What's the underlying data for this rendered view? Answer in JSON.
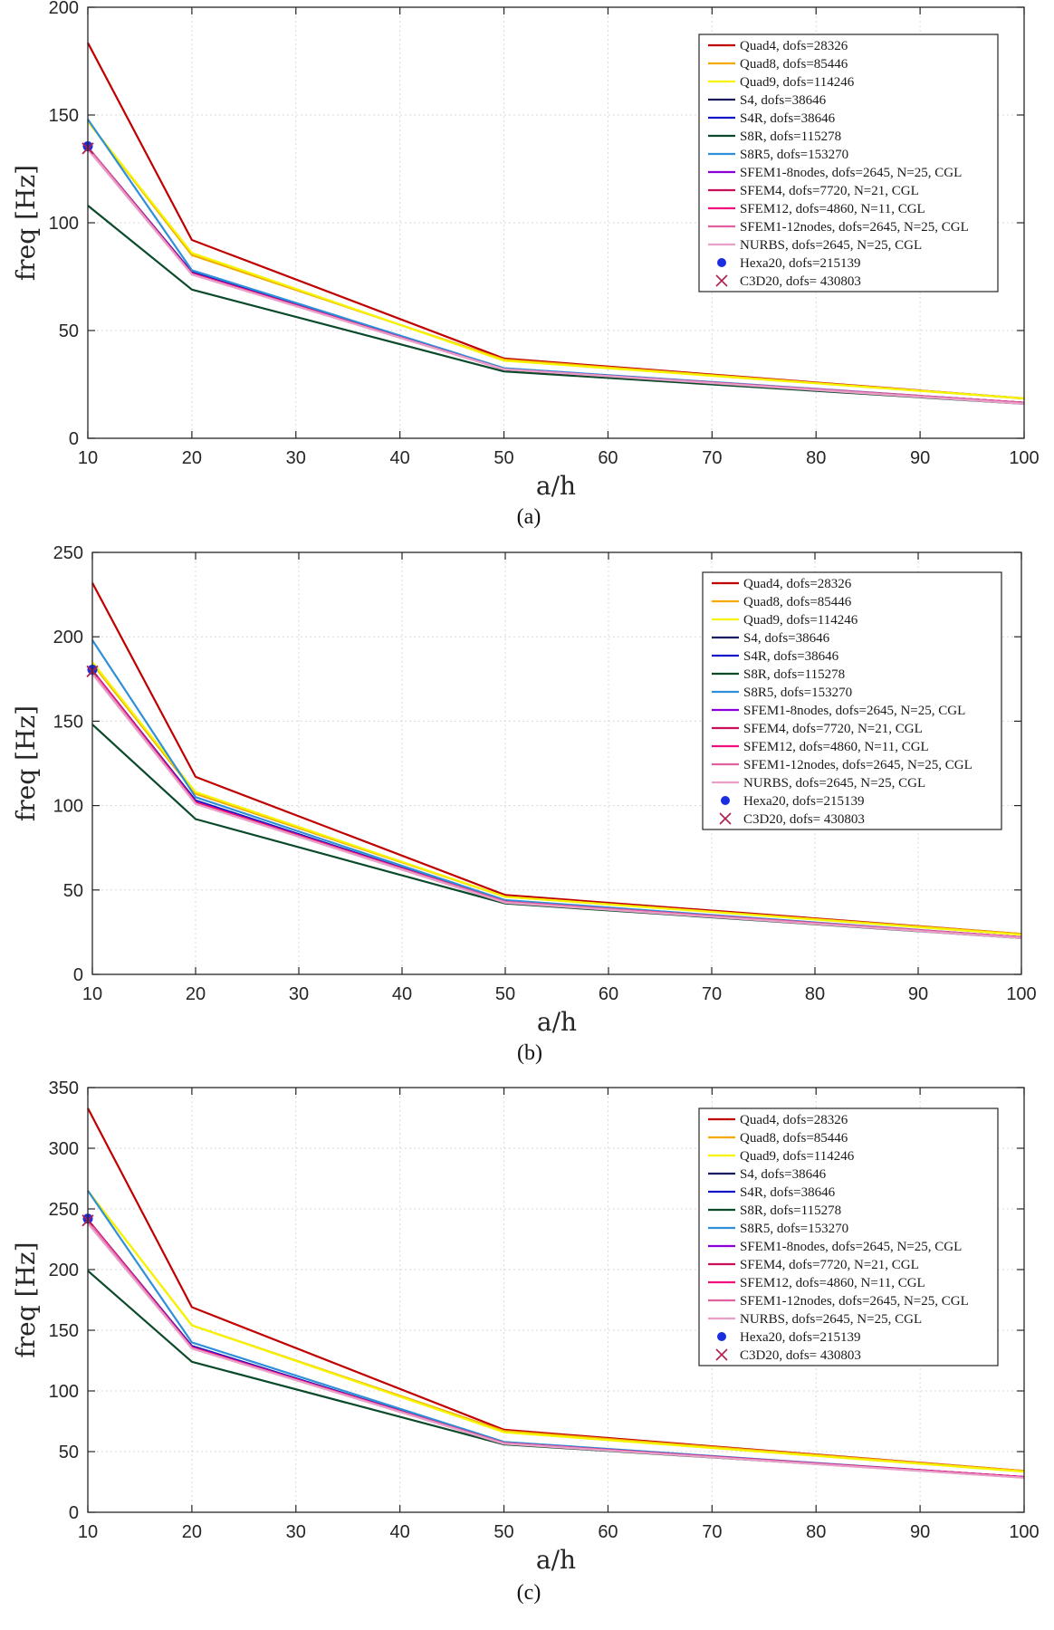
{
  "chart_data": [
    {
      "type": "line",
      "caption": "(a)",
      "xlabel": "a/h",
      "ylabel": "freq [Hz]",
      "xlim": [
        10,
        100
      ],
      "ylim": [
        0,
        200
      ],
      "xticks": [
        10,
        20,
        30,
        40,
        50,
        60,
        70,
        80,
        90,
        100
      ],
      "yticks": [
        0,
        50,
        100,
        150,
        200
      ],
      "x": [
        10,
        20,
        50,
        100
      ],
      "series": [
        {
          "name": "Quad4, dofs=28326",
          "color": "#c00000",
          "values": [
            183.5,
            92,
            37,
            18.5
          ]
        },
        {
          "name": "Quad8, dofs=85446",
          "color": "#f2a900",
          "values": [
            147,
            85,
            36.5,
            18.5
          ]
        },
        {
          "name": "Quad9, dofs=114246",
          "color": "#f5f500",
          "values": [
            147,
            86,
            36,
            18.5
          ]
        },
        {
          "name": "S4, dofs=38646",
          "color": "#1a1a5e",
          "values": [
            135,
            77,
            32,
            16.5
          ]
        },
        {
          "name": "S4R, dofs=38646",
          "color": "#1414c8",
          "values": [
            135,
            77,
            32,
            16.5
          ]
        },
        {
          "name": "S8R, dofs=115278",
          "color": "#0a4a2a",
          "values": [
            108,
            69,
            31,
            16
          ]
        },
        {
          "name": "S8R5, dofs=153270",
          "color": "#2f8fd8",
          "values": [
            148,
            78,
            32.5,
            16.5
          ]
        },
        {
          "name": "SFEM1-8nodes, dofs=2645, N=25, CGL",
          "color": "#8b00d8",
          "values": [
            135,
            76.5,
            32,
            16.5
          ]
        },
        {
          "name": "SFEM4, dofs=7720, N=21, CGL",
          "color": "#c8105a",
          "values": [
            135,
            76.5,
            32,
            16.5
          ]
        },
        {
          "name": "SFEM12, dofs=4860, N=11, CGL",
          "color": "#f0107a",
          "values": [
            135,
            76.5,
            32,
            16.5
          ]
        },
        {
          "name": "SFEM1-12nodes, dofs=2645, N=25, CGL",
          "color": "#e060a0",
          "values": [
            135,
            76,
            32,
            16.5
          ]
        },
        {
          "name": "NURBS, dofs=2645, N=25, CGL",
          "color": "#e8a0c8",
          "values": [
            134,
            76,
            32,
            16
          ]
        },
        {
          "name": "Hexa20, dofs=215139",
          "color": "#1a2ee0",
          "marker": "dot",
          "x_point": 10,
          "value": 135.5
        },
        {
          "name": "C3D20, dofs= 430803",
          "color": "#b02050",
          "marker": "x",
          "x_point": 10,
          "value": 134.5
        }
      ]
    },
    {
      "type": "line",
      "caption": "(b)",
      "xlabel": "a/h",
      "ylabel": "freq [Hz]",
      "xlim": [
        10,
        100
      ],
      "ylim": [
        0,
        250
      ],
      "xticks": [
        10,
        20,
        30,
        40,
        50,
        60,
        70,
        80,
        90,
        100
      ],
      "yticks": [
        0,
        50,
        100,
        150,
        200,
        250
      ],
      "x": [
        10,
        20,
        50,
        100
      ],
      "series": [
        {
          "name": "Quad4, dofs=28326",
          "color": "#c00000",
          "values": [
            232,
            117,
            47,
            24
          ]
        },
        {
          "name": "Quad8, dofs=85446",
          "color": "#f2a900",
          "values": [
            184,
            107,
            46,
            24
          ]
        },
        {
          "name": "Quad9, dofs=114246",
          "color": "#f5f500",
          "values": [
            185,
            108,
            46,
            23.5
          ]
        },
        {
          "name": "S4, dofs=38646",
          "color": "#1a1a5e",
          "values": [
            180,
            103,
            43,
            22
          ]
        },
        {
          "name": "S4R, dofs=38646",
          "color": "#1414c8",
          "values": [
            180,
            103,
            43,
            22
          ]
        },
        {
          "name": "S8R, dofs=115278",
          "color": "#0a4a2a",
          "values": [
            148,
            92,
            42,
            21.5
          ]
        },
        {
          "name": "S8R5, dofs=153270",
          "color": "#2f8fd8",
          "values": [
            198,
            105,
            44,
            22
          ]
        },
        {
          "name": "SFEM1-8nodes, dofs=2645, N=25, CGL",
          "color": "#8b00d8",
          "values": [
            180,
            102,
            43,
            22
          ]
        },
        {
          "name": "SFEM4, dofs=7720, N=21, CGL",
          "color": "#c8105a",
          "values": [
            180,
            102,
            43,
            22
          ]
        },
        {
          "name": "SFEM12, dofs=4860, N=11, CGL",
          "color": "#f0107a",
          "values": [
            180,
            102,
            43,
            22
          ]
        },
        {
          "name": "SFEM1-12nodes, dofs=2645, N=25, CGL",
          "color": "#e060a0",
          "values": [
            179,
            101,
            43,
            22
          ]
        },
        {
          "name": "NURBS, dofs=2645, N=25, CGL",
          "color": "#e8a0c8",
          "values": [
            178,
            101,
            42.5,
            21.5
          ]
        },
        {
          "name": "Hexa20, dofs=215139",
          "color": "#1a2ee0",
          "marker": "dot",
          "x_point": 10,
          "value": 180.5
        },
        {
          "name": "C3D20, dofs= 430803",
          "color": "#b02050",
          "marker": "x",
          "x_point": 10,
          "value": 179.5
        }
      ]
    },
    {
      "type": "line",
      "caption": "(c)",
      "xlabel": "a/h",
      "ylabel": "freq [Hz]",
      "xlim": [
        10,
        100
      ],
      "ylim": [
        0,
        350
      ],
      "xticks": [
        10,
        20,
        30,
        40,
        50,
        60,
        70,
        80,
        90,
        100
      ],
      "yticks": [
        0,
        50,
        100,
        150,
        200,
        250,
        300,
        350
      ],
      "x": [
        10,
        20,
        50,
        100
      ],
      "series": [
        {
          "name": "Quad4, dofs=28326",
          "color": "#c00000",
          "values": [
            333,
            169,
            68,
            34
          ]
        },
        {
          "name": "Quad8, dofs=85446",
          "color": "#f2a900",
          "values": [
            265,
            154,
            67,
            34
          ]
        },
        {
          "name": "Quad9, dofs=114246",
          "color": "#f5f500",
          "values": [
            265,
            154,
            66,
            33.5
          ]
        },
        {
          "name": "S4, dofs=38646",
          "color": "#1a1a5e",
          "values": [
            241,
            137,
            57,
            29
          ]
        },
        {
          "name": "S4R, dofs=38646",
          "color": "#1414c8",
          "values": [
            241,
            137,
            57,
            29
          ]
        },
        {
          "name": "S8R, dofs=115278",
          "color": "#0a4a2a",
          "values": [
            199,
            124,
            56,
            29
          ]
        },
        {
          "name": "S8R5, dofs=153270",
          "color": "#2f8fd8",
          "values": [
            265,
            140,
            58,
            29
          ]
        },
        {
          "name": "SFEM1-8nodes, dofs=2645, N=25, CGL",
          "color": "#8b00d8",
          "values": [
            241,
            136,
            57,
            29
          ]
        },
        {
          "name": "SFEM4, dofs=7720, N=21, CGL",
          "color": "#c8105a",
          "values": [
            241,
            136,
            57,
            29
          ]
        },
        {
          "name": "SFEM12, dofs=4860, N=11, CGL",
          "color": "#f0107a",
          "values": [
            241,
            136,
            57,
            29
          ]
        },
        {
          "name": "SFEM1-12nodes, dofs=2645, N=25, CGL",
          "color": "#e060a0",
          "values": [
            240,
            135,
            57,
            28.5
          ]
        },
        {
          "name": "NURBS, dofs=2645, N=25, CGL",
          "color": "#e8a0c8",
          "values": [
            238,
            135,
            56.5,
            28.5
          ]
        },
        {
          "name": "Hexa20, dofs=215139",
          "color": "#1a2ee0",
          "marker": "dot",
          "x_point": 10,
          "value": 242
        },
        {
          "name": "C3D20, dofs= 430803",
          "color": "#b02050",
          "marker": "x",
          "x_point": 10,
          "value": 240.5
        }
      ]
    }
  ]
}
